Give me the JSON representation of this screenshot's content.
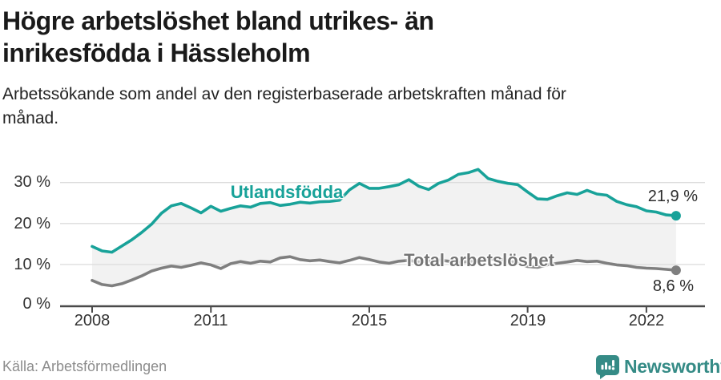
{
  "header": {
    "title_line1": "Högre arbetslöshet bland utrikes- än",
    "title_line2": "inrikesfödda i Hässleholm",
    "subtitle_line1": "Arbetssökande som andel av den registerbaserade arbetskraften månad för",
    "subtitle_line2": "månad."
  },
  "chart_data": {
    "type": "line",
    "title": "Högre arbetslöshet bland utrikes- än inrikesfödda i Hässleholm",
    "subtitle": "Arbetssökande som andel av den registerbaserade arbetskraften månad för månad.",
    "x_start_year": 2008,
    "x_step_years": 0.25,
    "x_range_years": [
      2008,
      2022.75
    ],
    "x_tick_years": [
      2008,
      2011,
      2015,
      2019,
      2022
    ],
    "x_tick_labels": [
      "2008",
      "2011",
      "2015",
      "2019",
      "2022"
    ],
    "y_ticks": [
      0,
      10,
      20,
      30
    ],
    "y_tick_labels": [
      "0 %",
      "10 %",
      "20 %",
      "30 %"
    ],
    "ylim": [
      0,
      36
    ],
    "grid": true,
    "legend_position": "inline-labels",
    "fill_between_color": "#f2f2f2",
    "series": [
      {
        "name": "Utlandsfödda",
        "color": "#18a299",
        "end_label": "21,9 %",
        "end_value": 21.9,
        "values": [
          14.4,
          13.3,
          13.0,
          14.5,
          16.0,
          17.8,
          19.8,
          22.5,
          24.3,
          24.9,
          23.8,
          22.6,
          24.2,
          23.0,
          23.7,
          24.3,
          24.0,
          24.9,
          25.1,
          24.4,
          24.7,
          25.2,
          25.0,
          25.3,
          25.4,
          25.7,
          28.2,
          29.8,
          28.6,
          28.6,
          29.0,
          29.5,
          30.7,
          29.1,
          28.3,
          29.8,
          30.6,
          32.0,
          32.4,
          33.2,
          31.0,
          30.3,
          29.8,
          29.5,
          27.7,
          26.0,
          25.9,
          26.8,
          27.5,
          27.1,
          28.1,
          27.2,
          26.9,
          25.4,
          24.6,
          24.1,
          23.1,
          22.8,
          22.1,
          21.9
        ]
      },
      {
        "name": "Total arbetslöshet",
        "color": "#7f7f7f",
        "end_label": "8,6 %",
        "end_value": 8.6,
        "values": [
          6.1,
          5.1,
          4.8,
          5.3,
          6.2,
          7.2,
          8.4,
          9.1,
          9.6,
          9.3,
          9.8,
          10.4,
          9.9,
          9.0,
          10.2,
          10.7,
          10.3,
          10.8,
          10.6,
          11.6,
          11.9,
          11.2,
          10.9,
          11.1,
          10.7,
          10.4,
          11.0,
          11.7,
          11.2,
          10.6,
          10.3,
          10.8,
          11.0,
          10.6,
          10.8,
          11.1,
          10.8,
          10.5,
          10.7,
          11.0,
          11.2,
          11.4,
          10.9,
          10.3,
          9.5,
          9.3,
          9.9,
          10.3,
          10.6,
          11.0,
          10.7,
          10.8,
          10.3,
          9.9,
          9.7,
          9.3,
          9.1,
          9.0,
          8.8,
          8.6
        ]
      }
    ]
  },
  "footer": {
    "source": "Källa: Arbetsförmedlingen",
    "brand": "Newsworthy"
  }
}
